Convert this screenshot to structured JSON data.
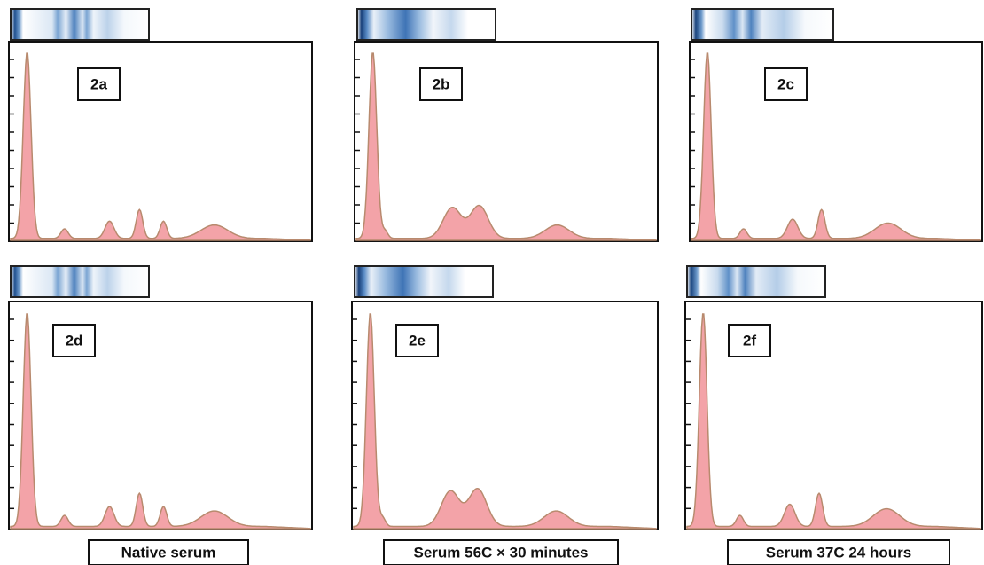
{
  "panels": [
    {
      "label": "2a"
    },
    {
      "label": "2b"
    },
    {
      "label": "2c"
    },
    {
      "label": "2d"
    },
    {
      "label": "2e"
    },
    {
      "label": "2f"
    }
  ],
  "captions": [
    "Native serum",
    "Serum 56C × 30 minutes",
    "Serum 37C 24 hours"
  ]
}
